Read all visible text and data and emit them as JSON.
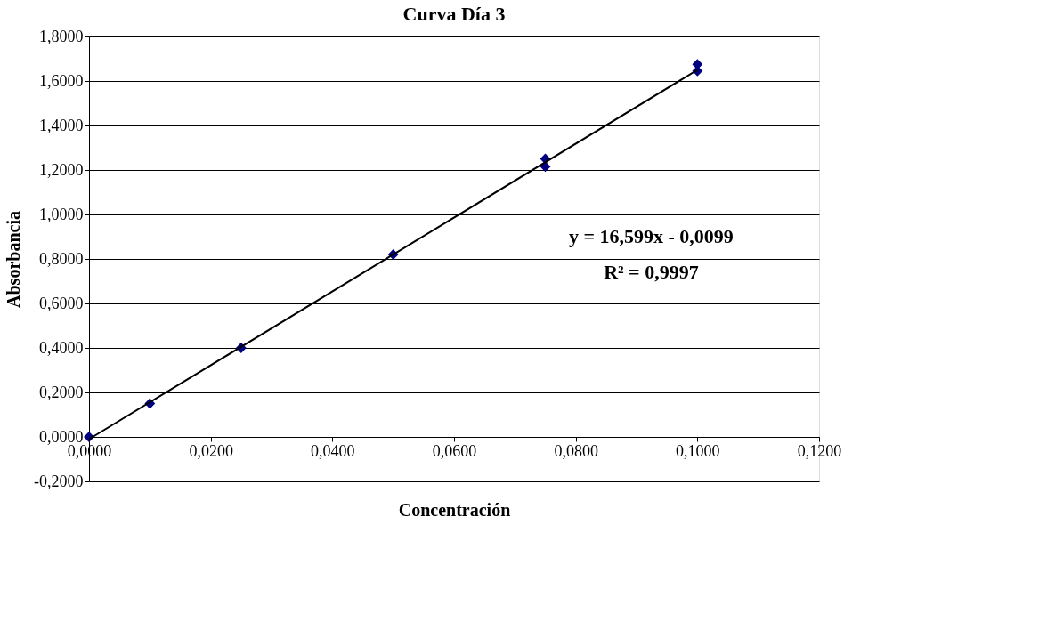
{
  "chart_data": {
    "type": "scatter",
    "title": "Curva Día 3",
    "xlabel": "Concentración",
    "ylabel": "Absorbancia",
    "series": [
      {
        "color": "#000080",
        "marker": "diamond",
        "x": [
          0,
          0.01,
          0.025,
          0.05,
          0.075,
          0.075,
          0.1,
          0.1
        ],
        "values": [
          0,
          0.15,
          0.4,
          0.82,
          1.215,
          1.25,
          1.645,
          1.675
        ]
      },
      {
        "type": "line",
        "color": "#000000",
        "marker": "none",
        "line_style": "solid",
        "x": [
          0,
          0.1
        ],
        "values": [
          -0.01,
          1.65
        ]
      }
    ],
    "xlim": [
      0,
      0.12
    ],
    "xticks": [
      {
        "value": 0,
        "label": "0,0000"
      },
      {
        "value": 0.02,
        "label": "0,0200"
      },
      {
        "value": 0.04,
        "label": "0,0400"
      },
      {
        "value": 0.06,
        "label": "0,0600"
      },
      {
        "value": 0.08,
        "label": "0,0800"
      },
      {
        "value": 0.1,
        "label": "0,1000"
      },
      {
        "value": 0.12,
        "label": "0,1200"
      }
    ],
    "ylim": [
      -0.2,
      1.8
    ],
    "yticks": [
      {
        "value": -0.2,
        "label": "-0,2000"
      },
      {
        "value": 0,
        "label": "0,0000"
      },
      {
        "value": 0.2,
        "label": "0,2000"
      },
      {
        "value": 0.4,
        "label": "0,4000"
      },
      {
        "value": 0.6,
        "label": "0,6000"
      },
      {
        "value": 0.8,
        "label": "0,8000"
      },
      {
        "value": 1.0,
        "label": "1,0000"
      },
      {
        "value": 1.2,
        "label": "1,2000"
      },
      {
        "value": 1.4,
        "label": "1,4000"
      },
      {
        "value": 1.6,
        "label": "1,6000"
      },
      {
        "value": 1.8,
        "label": "1,8000"
      }
    ],
    "grid": "y",
    "legend": false,
    "annotations": [
      "y = 16,599x - 0,0099",
      "R² = 0,9997"
    ]
  }
}
